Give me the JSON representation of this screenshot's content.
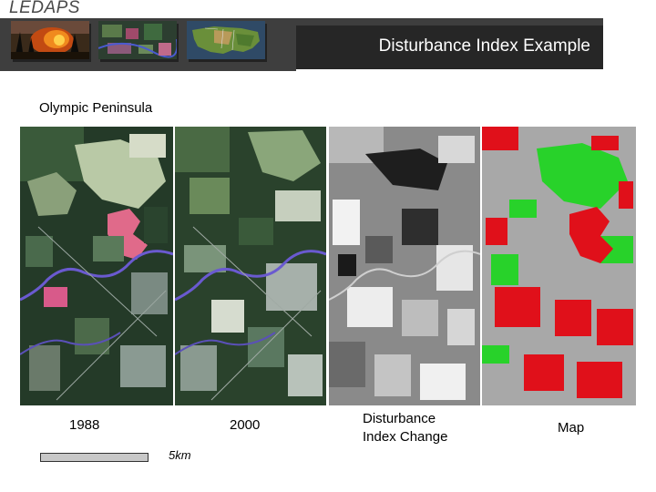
{
  "header": {
    "logo": "LEDAPS",
    "title": "Disturbance Index Example",
    "thumbnails": [
      "fire-photo",
      "landsat-scene",
      "us-map"
    ]
  },
  "subtitle": "Olympic Peninsula",
  "panels": [
    {
      "id": "img-1988",
      "label": "1988"
    },
    {
      "id": "img-2000",
      "label": "2000"
    },
    {
      "id": "img-di-change",
      "label_line1": "Disturbance",
      "label_line2": "Index Change"
    },
    {
      "id": "img-map",
      "label": "Map"
    }
  ],
  "scale": {
    "label": "5km"
  },
  "colors": {
    "header_bar": "#3e3e3e",
    "title_box": "#262626",
    "map_background": "#a8a8a8",
    "map_disturbed": "#e0101a",
    "map_regrowth": "#28d22a"
  }
}
